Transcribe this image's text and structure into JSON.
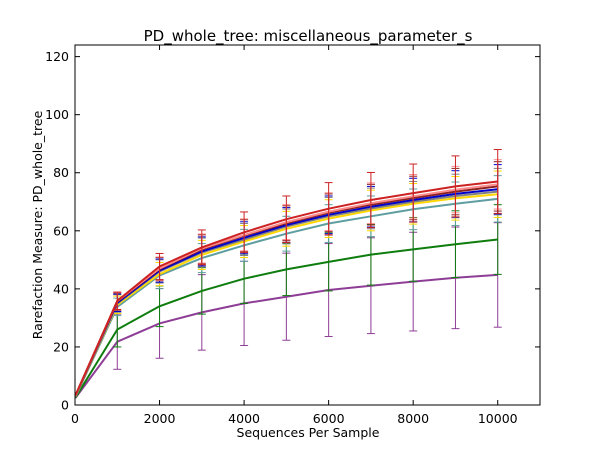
{
  "chart_data": {
    "type": "line",
    "title": "PD_whole_tree: miscellaneous_parameter_s",
    "xlabel": "Sequences Per Sample",
    "ylabel": "Rarefaction Measure: PD_whole_tree",
    "xlim": [
      0,
      11000
    ],
    "ylim": [
      0,
      124
    ],
    "xticks": [
      0,
      2000,
      4000,
      6000,
      8000,
      10000
    ],
    "yticks": [
      0,
      20,
      40,
      60,
      80,
      100,
      120
    ],
    "grid": false,
    "legend": "none",
    "x": [
      10,
      1000,
      2000,
      3000,
      4000,
      5000,
      6000,
      7000,
      8000,
      9000,
      10000
    ],
    "series": [
      {
        "color": "#8e3d96",
        "values": [
          2.4,
          21.8,
          28.1,
          31.9,
          35.0,
          37.3,
          39.6,
          41.1,
          42.5,
          43.8,
          44.8
        ],
        "err": [
          0,
          9.5,
          12,
          13,
          14.5,
          15,
          16,
          16.5,
          17,
          17.5,
          18
        ]
      },
      {
        "color": "#0e7d0e",
        "values": [
          2.5,
          26.0,
          34.0,
          39.3,
          43.5,
          46.7,
          49.3,
          51.8,
          53.6,
          55.4,
          57.0
        ],
        "err": [
          0,
          6,
          7,
          8,
          8.5,
          9,
          10,
          10.5,
          11,
          11.5,
          12
        ]
      },
      {
        "color": "#5f9ea0",
        "values": [
          2.8,
          33.8,
          44.6,
          50.6,
          55.0,
          59.0,
          62.5,
          65.0,
          67.4,
          69.3,
          71.0
        ],
        "err": [
          0,
          3,
          4.5,
          5,
          5.5,
          6,
          6.5,
          7,
          7,
          7.5,
          8
        ]
      },
      {
        "color": "#ffd700",
        "values": [
          2.9,
          34.5,
          45.1,
          51.7,
          56.3,
          60.7,
          64.2,
          67.0,
          69.3,
          71.2,
          72.6
        ],
        "err": [
          0,
          3,
          4,
          5,
          5.5,
          6,
          6.5,
          7,
          7,
          7.5,
          8
        ]
      },
      {
        "color": "#808080",
        "values": [
          3.0,
          35.0,
          46.0,
          52.5,
          57.0,
          61.5,
          65.0,
          67.7,
          70.0,
          72.0,
          73.5
        ],
        "err": [
          0,
          3,
          4,
          5,
          5.5,
          6,
          6.5,
          7,
          7,
          7.5,
          8
        ]
      },
      {
        "color": "#0000cd",
        "values": [
          3.1,
          35.2,
          46.3,
          52.9,
          57.6,
          62.0,
          65.5,
          68.3,
          70.6,
          72.7,
          74.3
        ],
        "err": [
          0,
          3,
          4,
          5,
          5.5,
          6,
          6.5,
          7,
          7.5,
          8,
          8.5
        ]
      },
      {
        "color": "#8b2222",
        "values": [
          3.2,
          35.6,
          46.8,
          53.6,
          58.3,
          62.6,
          66.2,
          69.0,
          71.3,
          73.5,
          75.3
        ],
        "err": [
          0,
          3,
          4,
          5,
          5.5,
          6,
          6.5,
          7,
          7.5,
          8,
          8.5
        ]
      },
      {
        "color": "#ff8c8c",
        "values": [
          3.2,
          35.8,
          47.0,
          53.9,
          58.6,
          63.0,
          66.6,
          69.5,
          71.9,
          74.2,
          76.0
        ],
        "err": [
          0,
          3,
          4,
          5,
          5.5,
          6,
          6.5,
          7,
          7.5,
          8,
          8.5
        ]
      },
      {
        "color": "#cc2222",
        "values": [
          3.3,
          35.9,
          47.7,
          54.3,
          59.5,
          64.0,
          67.6,
          70.6,
          73.0,
          75.3,
          77.0
        ],
        "err": [
          0,
          3,
          4.5,
          6,
          7,
          8,
          9,
          9.5,
          10,
          10.5,
          11
        ]
      }
    ]
  }
}
